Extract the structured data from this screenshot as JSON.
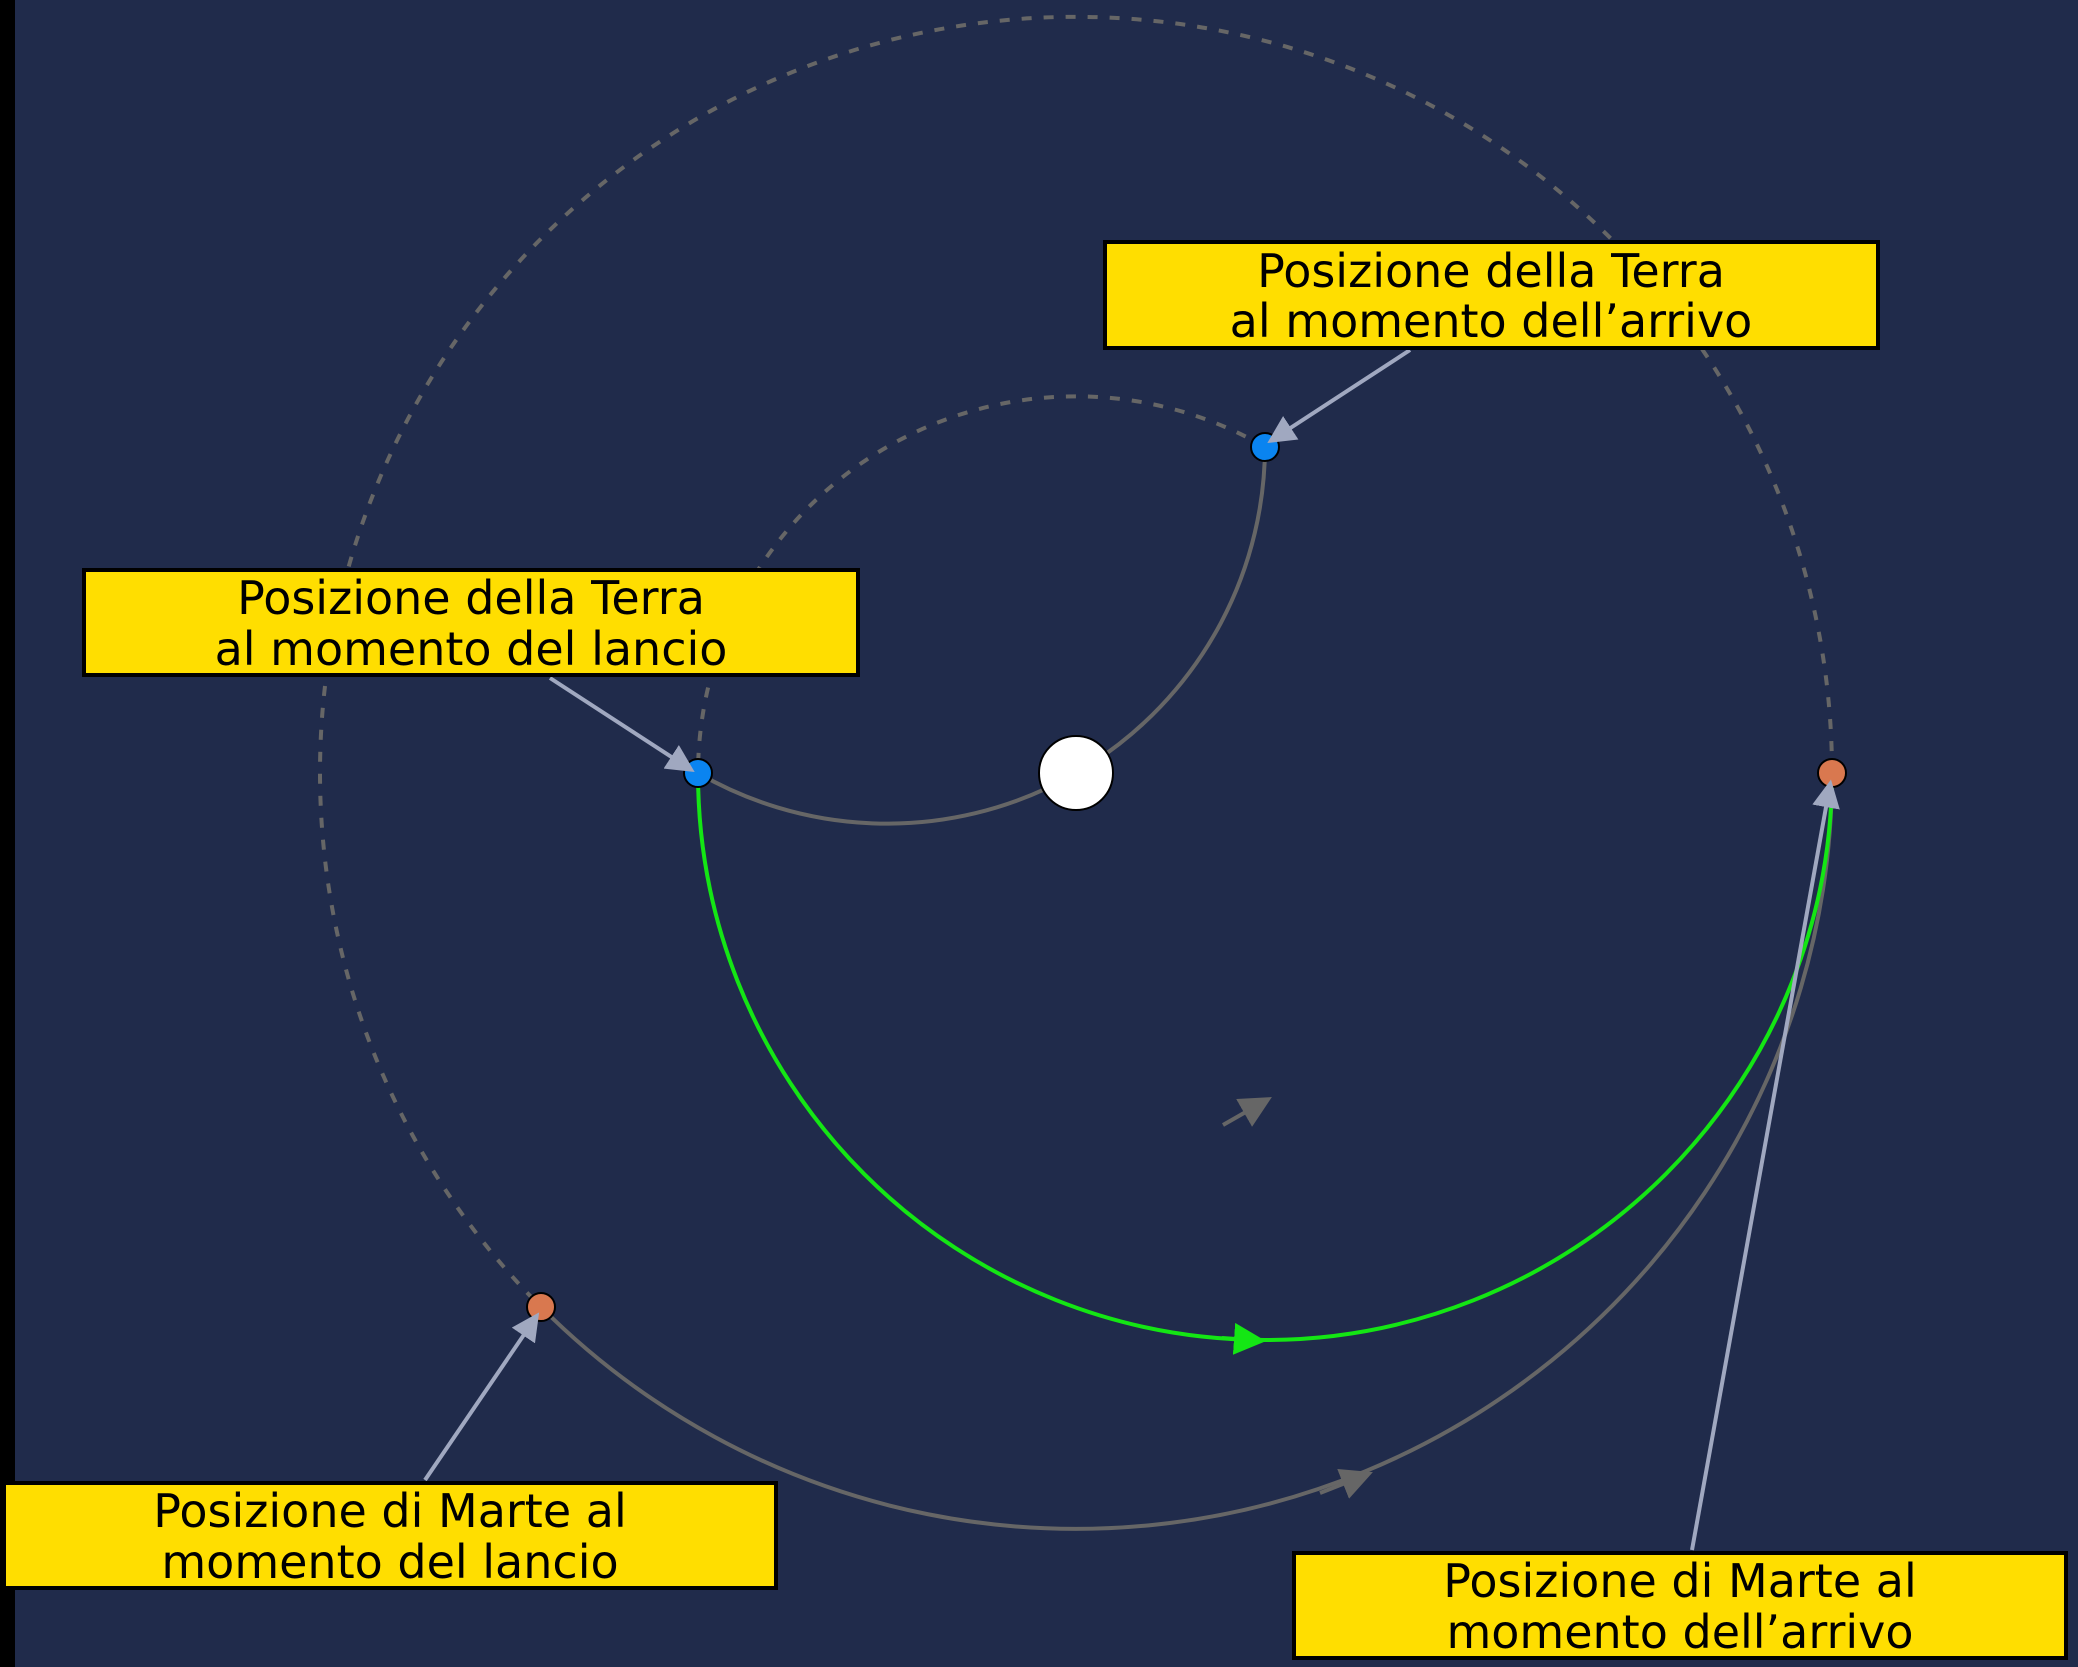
{
  "colors": {
    "background": "#202b4b",
    "left_border": "#000000",
    "sun": "#ffffff",
    "earth": "#0a84f0",
    "mars": "#d9784f",
    "orbit": "#666666",
    "transfer": "#14e614",
    "label_fill": "#ffde00",
    "label_border": "#000000",
    "pointer": "#a0a8c0"
  },
  "icons": {
    "sun": "sun-icon",
    "earth": "earth-icon",
    "mars": "mars-icon"
  },
  "labels": {
    "earth_arrival": {
      "line1": "Posizione della Terra",
      "line2": "al momento dell’arrivo"
    },
    "earth_launch": {
      "line1": "Posizione della Terra",
      "line2": "al momento del lancio"
    },
    "mars_launch": {
      "line1": "Posizione di Marte al",
      "line2": "momento del lancio"
    },
    "mars_arrival": {
      "line1": "Posizione di Marte al",
      "line2": "momento dell’arrivo"
    }
  }
}
